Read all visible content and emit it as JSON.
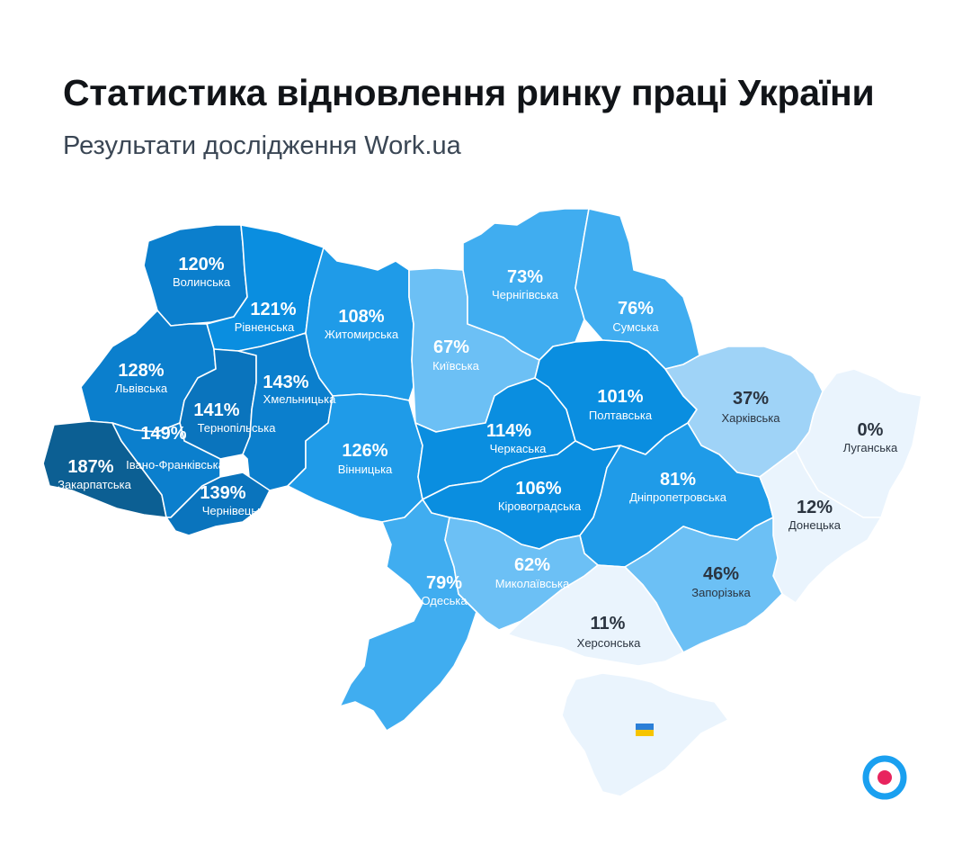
{
  "header": {
    "title": "Статистика відновлення ринку праці України",
    "subtitle": "Результати дослідження Work.ua"
  },
  "colors": {
    "scale": [
      "#eaf4fd",
      "#cde7fb",
      "#9fd3f7",
      "#6cc0f5",
      "#40adf0",
      "#1f9be8",
      "#0a8ee0",
      "#0b7fcd",
      "#0a74bd",
      "#0c5f93"
    ],
    "label_light": "#ffffff",
    "label_dark": "#2b3440",
    "logo_ring": "#1aa0f0",
    "logo_dot": "#e8245e"
  },
  "regions": [
    {
      "id": "volynska",
      "name": "Волинська",
      "value": "120%"
    },
    {
      "id": "rivnenska",
      "name": "Рівненська",
      "value": "121%"
    },
    {
      "id": "zhytomyrska",
      "name": "Житомирська",
      "value": "108%"
    },
    {
      "id": "kyivska",
      "name": "Київська",
      "value": "67%"
    },
    {
      "id": "chernihivska",
      "name": "Чернігівська",
      "value": "73%"
    },
    {
      "id": "sumska",
      "name": "Сумська",
      "value": "76%"
    },
    {
      "id": "lvivska",
      "name": "Львівська",
      "value": "128%"
    },
    {
      "id": "ternopilska",
      "name": "Тернопільська",
      "value": "141%"
    },
    {
      "id": "khmelnytska",
      "name": "Хмельницька",
      "value": "143%"
    },
    {
      "id": "vinnytska",
      "name": "Вінницька",
      "value": "126%"
    },
    {
      "id": "cherkaska",
      "name": "Черкаська",
      "value": "114%"
    },
    {
      "id": "poltavska",
      "name": "Полтавська",
      "value": "101%"
    },
    {
      "id": "kharkivska",
      "name": "Харківська",
      "value": "37%"
    },
    {
      "id": "luhanska",
      "name": "Луганська",
      "value": "0%"
    },
    {
      "id": "zakarpatska",
      "name": "Закарпатська",
      "value": "187%"
    },
    {
      "id": "ivano_frankivska",
      "name": "Івано-Франківська",
      "value": "149%"
    },
    {
      "id": "chernivetska",
      "name": "Чернівецька",
      "value": "139%"
    },
    {
      "id": "kirovohradska",
      "name": "Кіровоградська",
      "value": "106%"
    },
    {
      "id": "dnipropetrovska",
      "name": "Дніпропетровська",
      "value": "81%"
    },
    {
      "id": "donetska",
      "name": "Донецька",
      "value": "12%"
    },
    {
      "id": "odeska",
      "name": "Одеська",
      "value": "79%"
    },
    {
      "id": "mykolaivska",
      "name": "Миколаївська",
      "value": "62%"
    },
    {
      "id": "zaporizka",
      "name": "Запорізька",
      "value": "46%"
    },
    {
      "id": "khersonska",
      "name": "Херсонська",
      "value": "11%"
    },
    {
      "id": "krym",
      "name": "",
      "value": ""
    }
  ],
  "crimea_flag": {
    "icon": "ukraine-flag-icon",
    "top": "#2b7fd8",
    "bottom": "#f6c400"
  },
  "logo": {
    "icon": "work-ua-logo-icon"
  }
}
